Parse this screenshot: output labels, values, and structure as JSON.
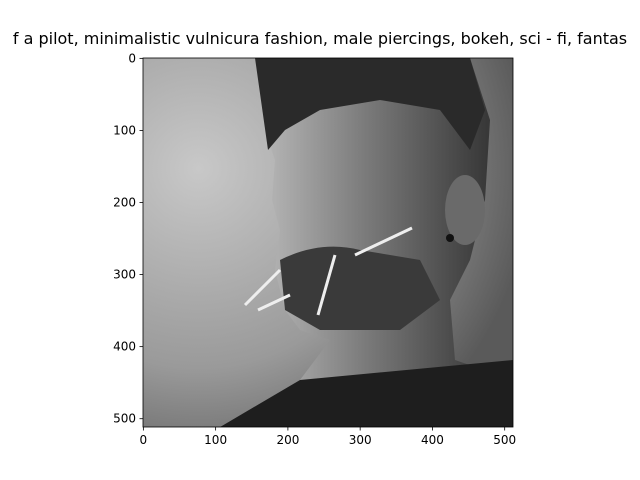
{
  "chart_data": {
    "type": "image",
    "title": "f a pilot,  minimalistic vulnicura fashion, male piercings, bokeh, sci - fi, fantas",
    "xlim": [
      -0.5,
      511.5
    ],
    "ylim": [
      511.5,
      -0.5
    ],
    "xticks": [
      0,
      100,
      200,
      300,
      400,
      500
    ],
    "yticks": [
      0,
      100,
      200,
      300,
      400,
      500
    ]
  }
}
